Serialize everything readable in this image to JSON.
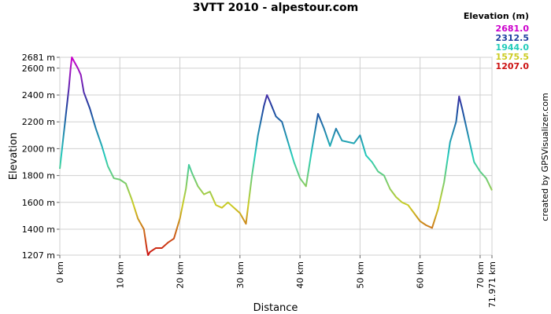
{
  "chart_data": {
    "type": "line",
    "title": "3VTT 2010 - alpestour.com",
    "x_label": "Distance",
    "y_label": "Elevation",
    "credit": "created by GPSVisualizer.com",
    "legend_title": "Elevation (m)",
    "color_scale": [
      {
        "value": 2681,
        "label": "2681.0",
        "color": "#cc00cc"
      },
      {
        "value": 2312.5,
        "label": "2312.5",
        "color": "#1f3f9f"
      },
      {
        "value": 1944,
        "label": "1944.0",
        "color": "#22ccbb"
      },
      {
        "value": 1575.5,
        "label": "1575.5",
        "color": "#cccc22"
      },
      {
        "value": 1207,
        "label": "1207.0",
        "color": "#cc1111"
      }
    ],
    "x": [
      0,
      0.5,
      1,
      1.5,
      1.8,
      2,
      2.5,
      3,
      3.5,
      4,
      5,
      6,
      7,
      8,
      9,
      10,
      11,
      12,
      13,
      14,
      14.5,
      14.7,
      15,
      16,
      17,
      18,
      19,
      20,
      21,
      21.5,
      22,
      23,
      24,
      25,
      26,
      27,
      28,
      29,
      30,
      31,
      32,
      33,
      34,
      34.5,
      35,
      36,
      37,
      38,
      39,
      40,
      41,
      42,
      43,
      44,
      45,
      46,
      47,
      48,
      49,
      50,
      51,
      52,
      53,
      54,
      55,
      56,
      57,
      58,
      59,
      60,
      61,
      62,
      63,
      64,
      65,
      66,
      66.5,
      67,
      68,
      69,
      70,
      71,
      71.971
    ],
    "values": [
      1850,
      2050,
      2250,
      2450,
      2600,
      2681,
      2640,
      2600,
      2550,
      2420,
      2300,
      2150,
      2020,
      1870,
      1780,
      1770,
      1740,
      1620,
      1480,
      1400,
      1250,
      1207,
      1230,
      1260,
      1260,
      1300,
      1330,
      1480,
      1700,
      1880,
      1820,
      1720,
      1660,
      1680,
      1580,
      1560,
      1600,
      1560,
      1520,
      1440,
      1800,
      2100,
      2320,
      2400,
      2350,
      2240,
      2200,
      2050,
      1900,
      1780,
      1720,
      2000,
      2260,
      2150,
      2020,
      2150,
      2060,
      2050,
      2040,
      2100,
      1950,
      1900,
      1830,
      1800,
      1700,
      1640,
      1600,
      1580,
      1520,
      1460,
      1430,
      1410,
      1550,
      1750,
      2050,
      2200,
      2390,
      2300,
      2100,
      1900,
      1830,
      1780,
      1690
    ],
    "xlim": [
      0,
      71.971
    ],
    "ylim": [
      1207,
      2681
    ],
    "xticks": [
      {
        "value": 0,
        "label": "0 km"
      },
      {
        "value": 10,
        "label": "10 km"
      },
      {
        "value": 20,
        "label": "20 km"
      },
      {
        "value": 30,
        "label": "30 km"
      },
      {
        "value": 40,
        "label": "40 km"
      },
      {
        "value": 50,
        "label": "50 km"
      },
      {
        "value": 60,
        "label": "60 km"
      },
      {
        "value": 70,
        "label": "70 km"
      },
      {
        "value": 71.971,
        "label": "71.971 km"
      }
    ],
    "yticks": [
      {
        "value": 1207,
        "label": "1207 m"
      },
      {
        "value": 1400,
        "label": "1400 m"
      },
      {
        "value": 1600,
        "label": "1600 m"
      },
      {
        "value": 1800,
        "label": "1800 m"
      },
      {
        "value": 2000,
        "label": "2000 m"
      },
      {
        "value": 2200,
        "label": "2200 m"
      },
      {
        "value": 2400,
        "label": "2400 m"
      },
      {
        "value": 2600,
        "label": "2600 m"
      },
      {
        "value": 2681,
        "label": "2681 m"
      }
    ],
    "grid": true
  }
}
